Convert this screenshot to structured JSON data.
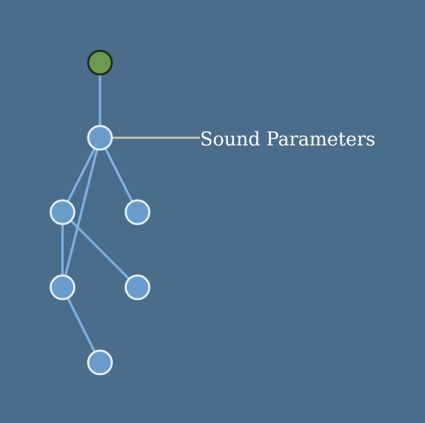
{
  "diagram": {
    "colors": {
      "background": "#4a6d8c",
      "edge": "#7fb0df",
      "node_fill": "#6a9ccb",
      "node_stroke": "#e3eefa",
      "root_fill": "#6b9a50",
      "root_stroke": "#1c2d16",
      "callout_line": "#c9c4bb",
      "label_text": "#ffffff"
    },
    "nodes": [
      {
        "id": "root",
        "kind": "root"
      },
      {
        "id": "sound-parameters",
        "kind": "node",
        "label": "Sound Parameters"
      },
      {
        "id": "node-a",
        "kind": "node"
      },
      {
        "id": "node-b",
        "kind": "node"
      },
      {
        "id": "node-c",
        "kind": "node"
      },
      {
        "id": "node-d",
        "kind": "node"
      },
      {
        "id": "node-e",
        "kind": "node"
      }
    ],
    "edges": [
      [
        "root",
        "sound-parameters"
      ],
      [
        "sound-parameters",
        "node-a"
      ],
      [
        "sound-parameters",
        "node-b"
      ],
      [
        "sound-parameters",
        "node-c"
      ],
      [
        "node-a",
        "node-c"
      ],
      [
        "node-a",
        "node-d"
      ],
      [
        "node-c",
        "node-e"
      ]
    ],
    "callout": {
      "node": "sound-parameters",
      "text": "Sound Parameters"
    }
  }
}
